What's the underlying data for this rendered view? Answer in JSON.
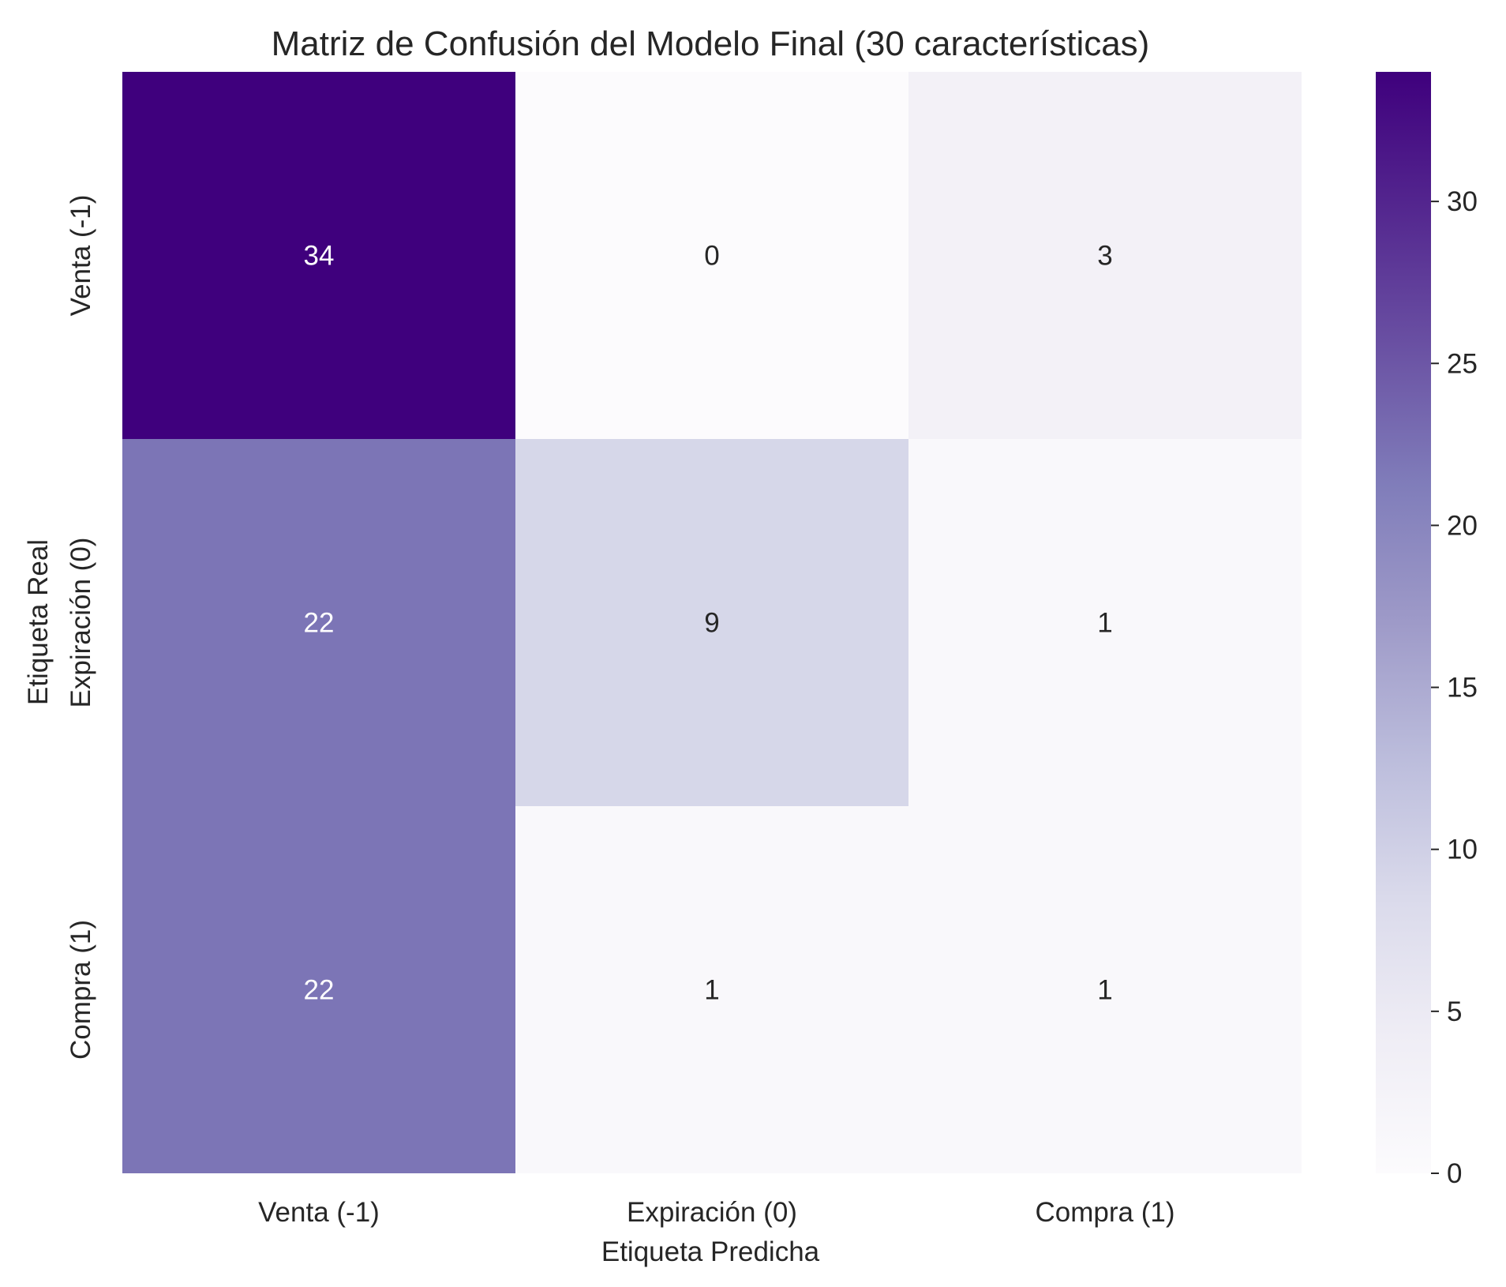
{
  "chart_data": {
    "type": "heatmap",
    "title": "Matriz de Confusión del Modelo Final (30 características)",
    "xlabel": "Etiqueta Predicha",
    "ylabel": "Etiqueta Real",
    "x_categories": [
      "Venta (-1)",
      "Expiración (0)",
      "Compra (1)"
    ],
    "y_categories": [
      "Venta (-1)",
      "Expiración (0)",
      "Compra (1)"
    ],
    "values": [
      [
        34,
        0,
        3
      ],
      [
        22,
        9,
        1
      ],
      [
        22,
        1,
        1
      ]
    ],
    "colorbar": {
      "range": [
        0,
        34
      ],
      "ticks": [
        0,
        5,
        10,
        15,
        20,
        25,
        30
      ]
    },
    "colormap": "Purples",
    "colors": {
      "low": "#fcfbfd",
      "high": "#3f007d"
    }
  }
}
